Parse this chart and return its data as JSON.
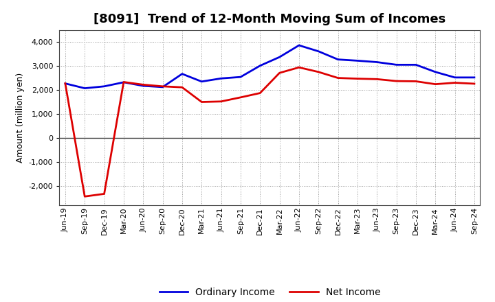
{
  "title": "[8091]  Trend of 12-Month Moving Sum of Incomes",
  "ylabel": "Amount (million yen)",
  "x_labels": [
    "Jun-19",
    "Sep-19",
    "Dec-19",
    "Mar-20",
    "Jun-20",
    "Sep-20",
    "Dec-20",
    "Mar-21",
    "Jun-21",
    "Sep-21",
    "Dec-21",
    "Mar-22",
    "Jun-22",
    "Sep-22",
    "Dec-22",
    "Mar-23",
    "Jun-23",
    "Sep-23",
    "Dec-23",
    "Mar-24",
    "Jun-24",
    "Sep-24"
  ],
  "ordinary_income": [
    2280,
    2080,
    2160,
    2330,
    2180,
    2130,
    2680,
    2360,
    2490,
    2550,
    3020,
    3380,
    3870,
    3620,
    3280,
    3230,
    3170,
    3060,
    3060,
    2760,
    2530,
    2530
  ],
  "net_income": [
    2280,
    -2430,
    -2320,
    2340,
    2230,
    2160,
    2120,
    1510,
    1530,
    1700,
    1880,
    2720,
    2950,
    2760,
    2510,
    2480,
    2460,
    2380,
    2370,
    2250,
    2310,
    2270
  ],
  "ordinary_color": "#0000dd",
  "net_color": "#dd0000",
  "background_color": "#ffffff",
  "plot_bg_color": "#ffffff",
  "grid_color": "#999999",
  "ylim": [
    -2800,
    4500
  ],
  "yticks": [
    -2000,
    -1000,
    0,
    1000,
    2000,
    3000,
    4000
  ],
  "title_fontsize": 13,
  "axis_label_fontsize": 9,
  "tick_fontsize": 8,
  "legend_fontsize": 10,
  "line_width": 2.0
}
